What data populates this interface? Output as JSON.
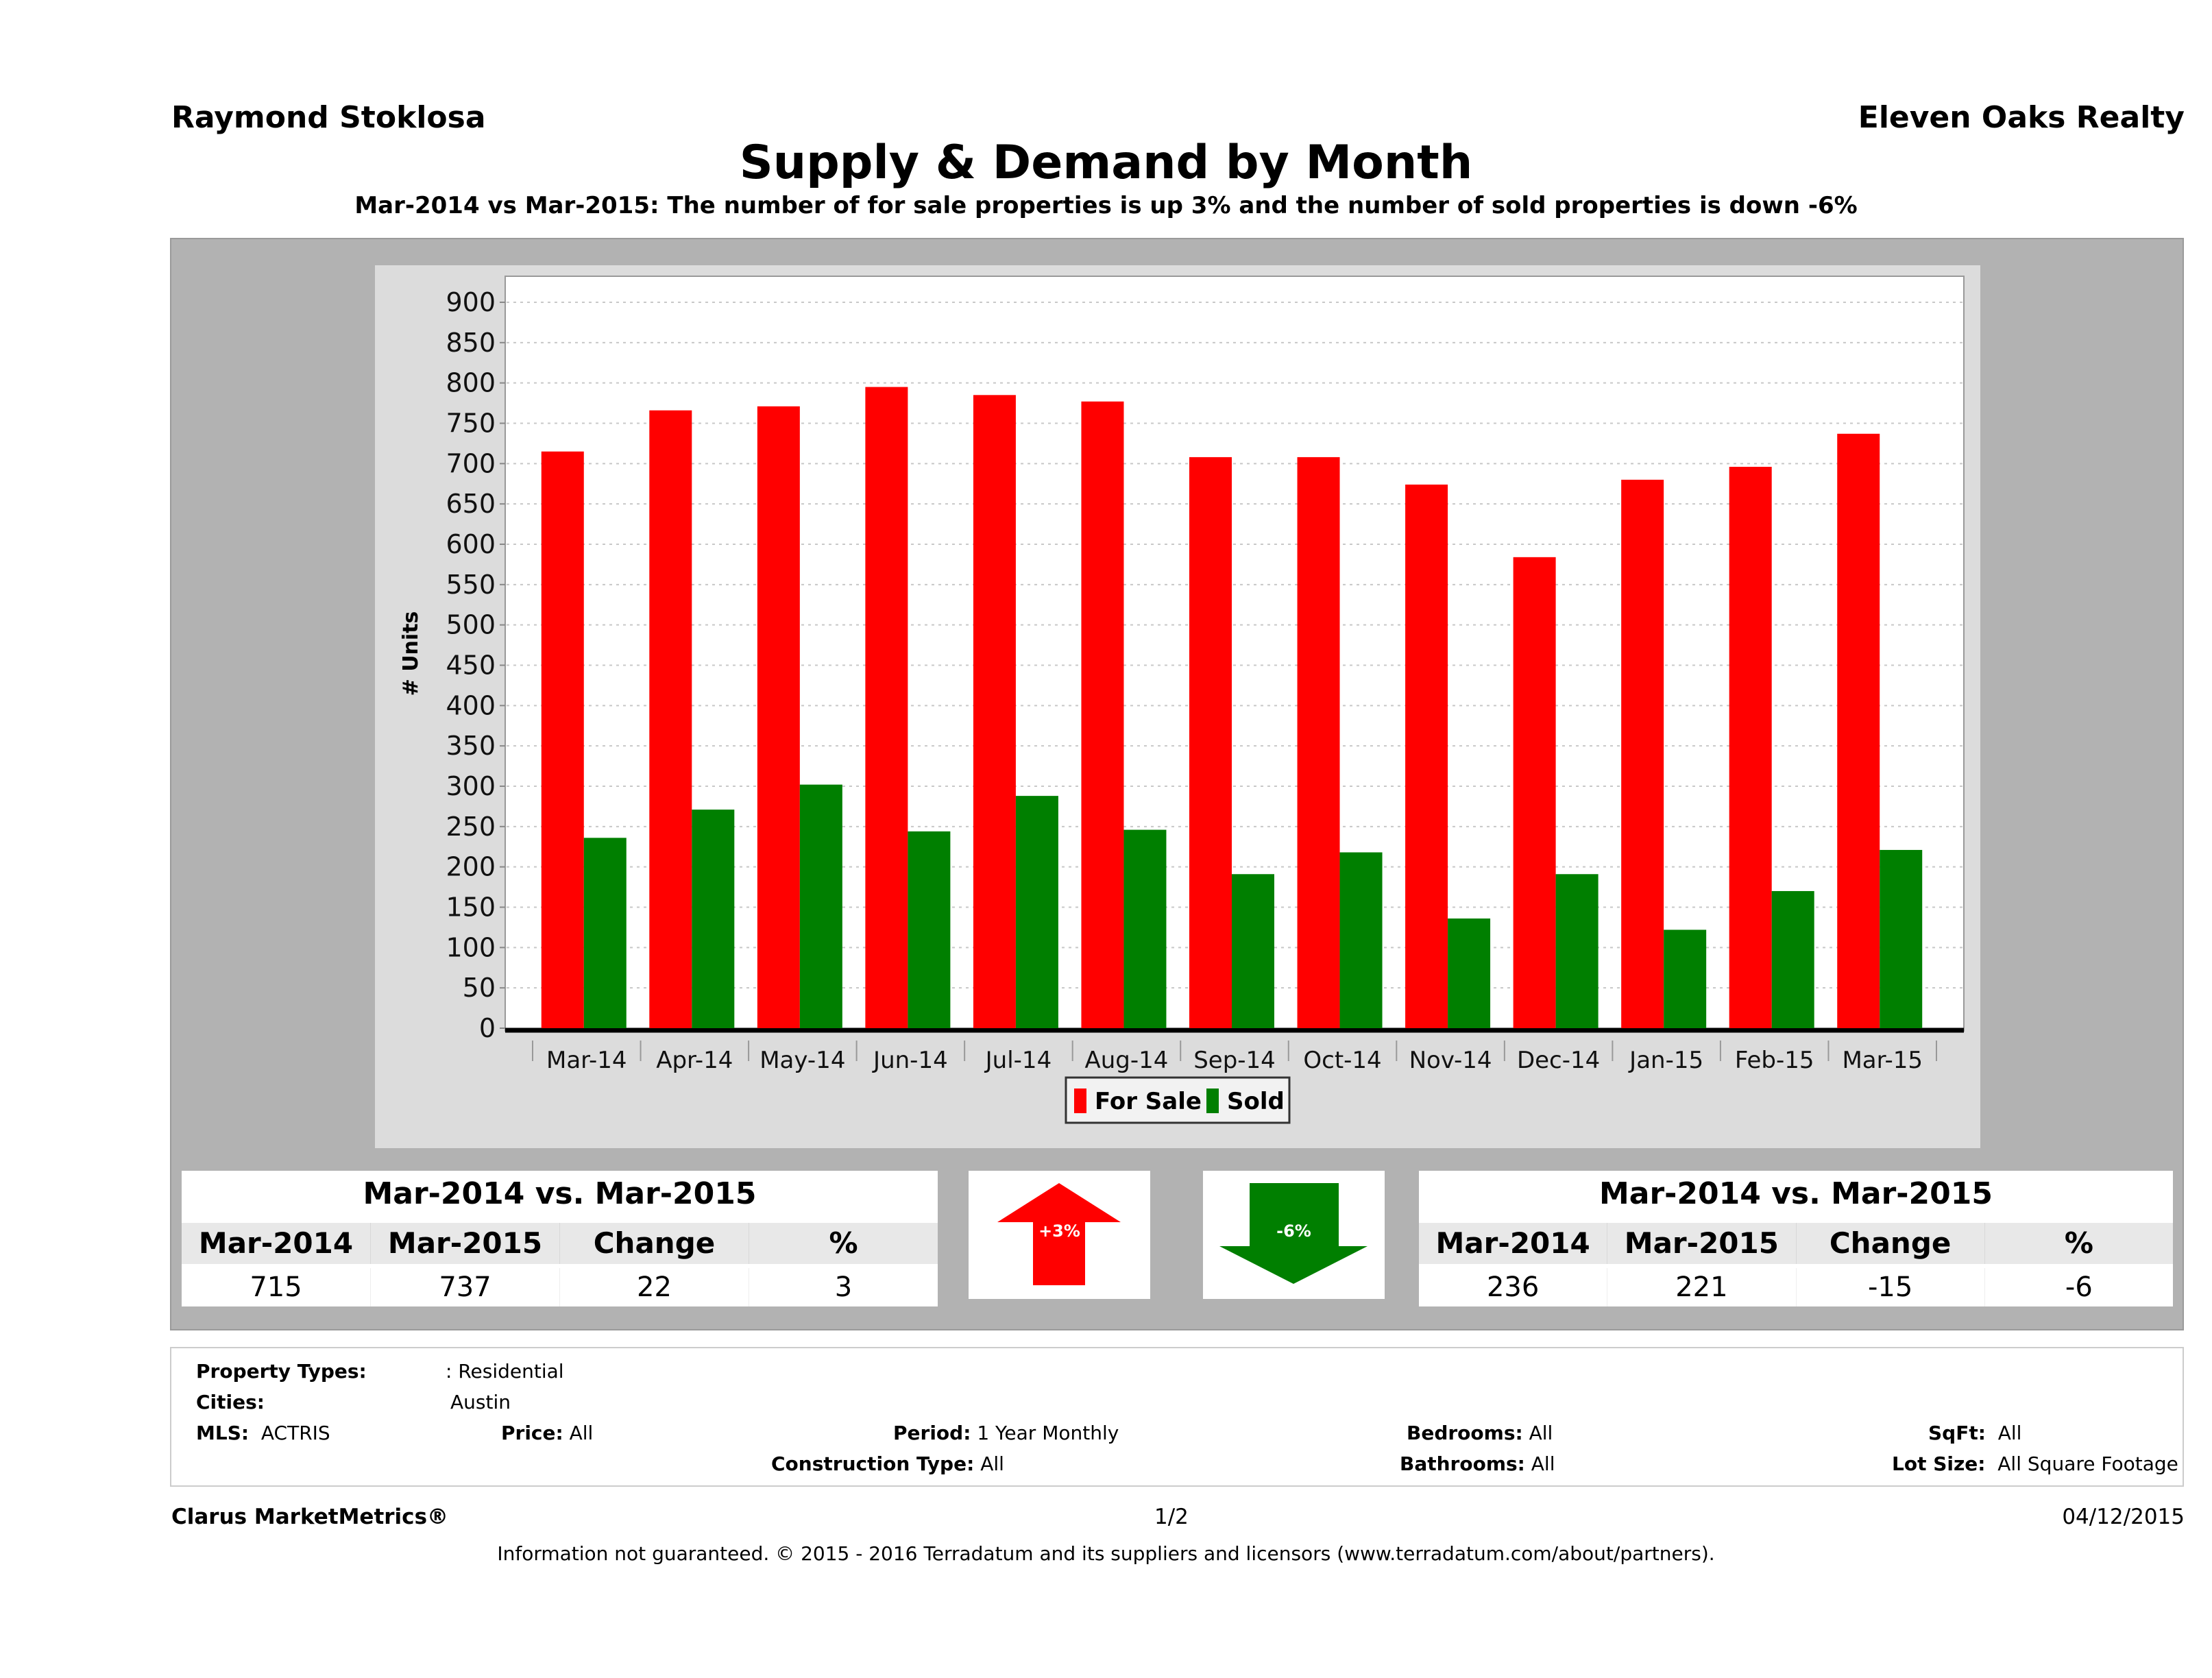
{
  "header": {
    "agent_name": "Raymond Stoklosa",
    "brokerage": "Eleven Oaks Realty",
    "title": "Supply & Demand by Month",
    "subtitle": "Mar-2014 vs Mar-2015: The number of for sale properties is up 3% and the number of sold properties is down -6%"
  },
  "chart_data": {
    "type": "bar",
    "title": "Supply & Demand by Month",
    "xlabel": "",
    "ylabel": "# Units",
    "ylim": [
      0,
      900
    ],
    "yticks": [
      0,
      50,
      100,
      150,
      200,
      250,
      300,
      350,
      400,
      450,
      500,
      550,
      600,
      650,
      700,
      750,
      800,
      850,
      900
    ],
    "grid": true,
    "legend_position": "bottom-center",
    "categories": [
      "Mar-14",
      "Apr-14",
      "May-14",
      "Jun-14",
      "Jul-14",
      "Aug-14",
      "Sep-14",
      "Oct-14",
      "Nov-14",
      "Dec-14",
      "Jan-15",
      "Feb-15",
      "Mar-15"
    ],
    "series": [
      {
        "name": "For Sale",
        "color": "#ff0000",
        "values": [
          715,
          766,
          771,
          795,
          785,
          777,
          708,
          708,
          674,
          584,
          680,
          696,
          737
        ]
      },
      {
        "name": "Sold",
        "color": "#007f00",
        "values": [
          236,
          271,
          302,
          244,
          288,
          246,
          191,
          218,
          136,
          191,
          122,
          170,
          221
        ]
      }
    ]
  },
  "for_sale_summary": {
    "title": "Mar-2014 vs. Mar-2015",
    "headers": [
      "Mar-2014",
      "Mar-2015",
      "Change",
      "%"
    ],
    "values": [
      "715",
      "737",
      "22",
      "3"
    ],
    "badge": "+3%",
    "direction": "up",
    "color": "#ff0000"
  },
  "sold_summary": {
    "title": "Mar-2014 vs. Mar-2015",
    "headers": [
      "Mar-2014",
      "Mar-2015",
      "Change",
      "%"
    ],
    "values": [
      "236",
      "221",
      "-15",
      "-6"
    ],
    "badge": "-6%",
    "direction": "down",
    "color": "#007f00"
  },
  "criteria": {
    "property_types_label": "Property Types:",
    "property_types_value": ": Residential",
    "cities_label": "Cities:",
    "cities_value": "Austin",
    "mls_label": "MLS:",
    "mls_value": "ACTRIS",
    "price_label": "Price:",
    "price_value": "All",
    "period_label": "Period:",
    "period_value": "1 Year Monthly",
    "construction_label": "Construction Type:",
    "construction_value": "All",
    "bedrooms_label": "Bedrooms:",
    "bedrooms_value": "All",
    "bathrooms_label": "Bathrooms:",
    "bathrooms_value": "All",
    "sqft_label": "SqFt:",
    "sqft_value": "All",
    "lot_label": "Lot Size:",
    "lot_value": "All Square Footage"
  },
  "footer": {
    "brand": "Clarus MarketMetrics®",
    "page": "1/2",
    "date": "04/12/2015",
    "disclaimer": "Information not guaranteed. © 2015 - 2016 Terradatum and its suppliers and licensors (www.terradatum.com/about/partners)."
  }
}
